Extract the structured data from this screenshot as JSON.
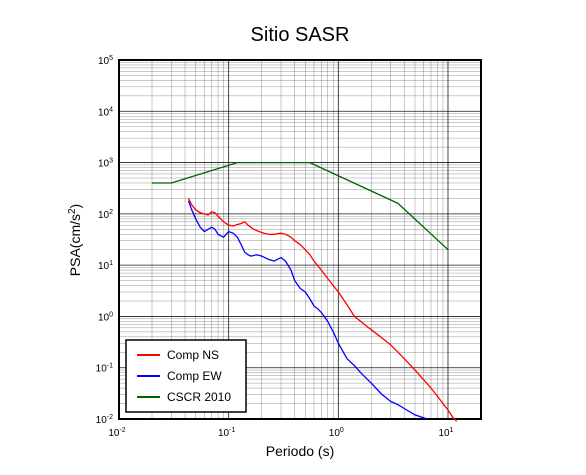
{
  "chart_data": {
    "type": "line",
    "title": "Sitio SASR",
    "xlabel": "Periodo (s)",
    "ylabel_prefix": "PSA(cm/s",
    "ylabel_sup": "2",
    "ylabel_suffix": ")",
    "x_scale": "log",
    "y_scale": "log",
    "xlim": [
      0.01,
      20
    ],
    "ylim": [
      0.01,
      100000
    ],
    "x_ticks": [
      {
        "base": "10",
        "exp": "-2",
        "value": 0.01
      },
      {
        "base": "10",
        "exp": "-1",
        "value": 0.1
      },
      {
        "base": "10",
        "exp": "0",
        "value": 1
      },
      {
        "base": "10",
        "exp": "1",
        "value": 10
      }
    ],
    "y_ticks": [
      {
        "base": "10",
        "exp": "-2",
        "value": 0.01
      },
      {
        "base": "10",
        "exp": "-1",
        "value": 0.1
      },
      {
        "base": "10",
        "exp": "0",
        "value": 1
      },
      {
        "base": "10",
        "exp": "1",
        "value": 10
      },
      {
        "base": "10",
        "exp": "2",
        "value": 100
      },
      {
        "base": "10",
        "exp": "3",
        "value": 1000
      },
      {
        "base": "10",
        "exp": "4",
        "value": 10000
      },
      {
        "base": "10",
        "exp": "5",
        "value": 100000
      }
    ],
    "grid": true,
    "legend_position": "bottom-left",
    "series": [
      {
        "name": "Comp NS",
        "color": "#ff0000",
        "x": [
          0.043,
          0.046,
          0.05,
          0.055,
          0.06,
          0.065,
          0.07,
          0.075,
          0.08,
          0.09,
          0.1,
          0.11,
          0.12,
          0.13,
          0.14,
          0.15,
          0.17,
          0.19,
          0.21,
          0.23,
          0.26,
          0.3,
          0.33,
          0.37,
          0.4,
          0.45,
          0.5,
          0.55,
          0.6,
          0.7,
          0.8,
          0.9,
          1.0,
          1.2,
          1.4,
          1.6,
          1.8,
          2.0,
          2.5,
          3.0,
          3.5,
          4.0,
          5.0,
          6.0,
          7.0,
          8.0,
          9.0,
          10.0,
          11.0,
          12.0
        ],
        "values": [
          200,
          150,
          120,
          105,
          100,
          95,
          110,
          105,
          90,
          70,
          60,
          58,
          62,
          65,
          70,
          60,
          50,
          45,
          42,
          40,
          40,
          42,
          40,
          35,
          30,
          25,
          20,
          16,
          12,
          8,
          5.5,
          4,
          3,
          1.7,
          1.0,
          0.8,
          0.65,
          0.55,
          0.38,
          0.28,
          0.2,
          0.15,
          0.09,
          0.058,
          0.04,
          0.028,
          0.02,
          0.015,
          0.011,
          0.009
        ]
      },
      {
        "name": "Comp EW",
        "color": "#0000ff",
        "x": [
          0.043,
          0.046,
          0.05,
          0.055,
          0.06,
          0.065,
          0.07,
          0.075,
          0.08,
          0.09,
          0.1,
          0.11,
          0.12,
          0.13,
          0.14,
          0.15,
          0.16,
          0.18,
          0.2,
          0.23,
          0.26,
          0.3,
          0.33,
          0.37,
          0.4,
          0.45,
          0.5,
          0.55,
          0.6,
          0.65,
          0.7,
          0.8,
          0.9,
          1.0,
          1.2,
          1.4,
          1.6,
          2.0,
          2.5,
          3.0,
          3.5,
          4.0,
          5.0,
          6.0,
          6.5
        ],
        "values": [
          180,
          120,
          80,
          55,
          45,
          50,
          55,
          50,
          40,
          35,
          45,
          42,
          35,
          25,
          18,
          16,
          15,
          16,
          15,
          13,
          12,
          14,
          12,
          8,
          5,
          3.5,
          3,
          2.2,
          1.6,
          1.4,
          1.2,
          0.8,
          0.5,
          0.3,
          0.15,
          0.11,
          0.08,
          0.05,
          0.03,
          0.022,
          0.019,
          0.016,
          0.012,
          0.0105,
          0.01
        ]
      },
      {
        "name": "CSCR 2010",
        "color": "#006400",
        "x": [
          0.02,
          0.03,
          0.12,
          0.55,
          3.5,
          10
        ],
        "values": [
          400,
          400,
          1000,
          1000,
          160,
          20
        ]
      }
    ]
  }
}
